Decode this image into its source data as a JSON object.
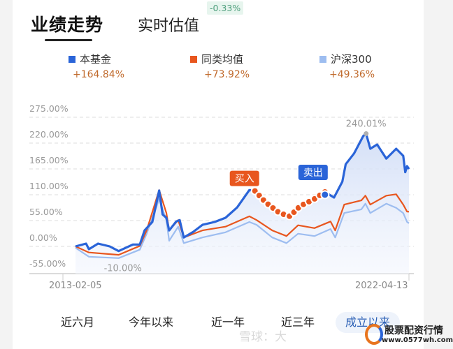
{
  "tabs": {
    "active": "业绩走势",
    "second": "实时估值",
    "estimate_badge": "-0.33%"
  },
  "legend": [
    {
      "name": "本基金",
      "value": "+164.84%",
      "color": "#2a64d8"
    },
    {
      "name": "同类均值",
      "value": "+73.92%",
      "color": "#e8561e"
    },
    {
      "name": "沪深300",
      "value": "+49.36%",
      "color": "#9dbdf0"
    }
  ],
  "chart_data": {
    "type": "line",
    "y_ticks": [
      "275.00%",
      "220.00%",
      "165.00%",
      "110.00%",
      "55.00%",
      "0.00%",
      "-55.00%"
    ],
    "ylim": [
      -55,
      275
    ],
    "x_range": [
      "2013-02-05",
      "2022-04-13"
    ],
    "grid": true,
    "max_label": "240.01%",
    "min_label": "-10.00%",
    "buy_label": "买入",
    "sell_label": "卖出",
    "buy_date": "2018-01-15",
    "sell_date": "2019-12-20",
    "series": [
      {
        "name": "本基金",
        "color": "#2a64d8",
        "points": [
          [
            "2013-02-05",
            0
          ],
          [
            "2013-05-22",
            6
          ],
          [
            "2013-06-20",
            -6
          ],
          [
            "2013-09-20",
            6
          ],
          [
            "2014-01-15",
            0
          ],
          [
            "2014-04-15",
            -10
          ],
          [
            "2014-09-05",
            4
          ],
          [
            "2014-11-14",
            4
          ],
          [
            "2015-01-01",
            34
          ],
          [
            "2015-03-20",
            52
          ],
          [
            "2015-05-28",
            119
          ],
          [
            "2015-07-01",
            68
          ],
          [
            "2015-08-08",
            61
          ],
          [
            "2015-09-05",
            34
          ],
          [
            "2015-11-15",
            53
          ],
          [
            "2015-12-20",
            56
          ],
          [
            "2016-01-30",
            19
          ],
          [
            "2016-05-05",
            31
          ],
          [
            "2016-08-05",
            46
          ],
          [
            "2016-12-05",
            52
          ],
          [
            "2017-03-25",
            61
          ],
          [
            "2017-07-20",
            83
          ],
          [
            "2017-11-20",
            120
          ],
          [
            "2018-01-15",
            118
          ],
          [
            "2018-05-01",
            94
          ],
          [
            "2018-09-20",
            71
          ],
          [
            "2019-01-01",
            64
          ],
          [
            "2019-04-15",
            86
          ],
          [
            "2019-09-05",
            101
          ],
          [
            "2019-12-20",
            116
          ],
          [
            "2020-03-20",
            104
          ],
          [
            "2020-06-12",
            138
          ],
          [
            "2020-07-16",
            175
          ],
          [
            "2020-10-08",
            198
          ],
          [
            "2021-01-08",
            235
          ],
          [
            "2021-02-06",
            240.01
          ],
          [
            "2021-03-20",
            208
          ],
          [
            "2021-05-28",
            217
          ],
          [
            "2021-08-28",
            187
          ],
          [
            "2021-12-05",
            208
          ],
          [
            "2022-02-14",
            193
          ],
          [
            "2022-03-07",
            158
          ],
          [
            "2022-03-25",
            171
          ],
          [
            "2022-04-13",
            164.84
          ]
        ]
      },
      {
        "name": "同类均值",
        "color": "#e8561e",
        "points": [
          [
            "2013-02-05",
            0
          ],
          [
            "2013-06-20",
            -13
          ],
          [
            "2014-04-15",
            -18
          ],
          [
            "2014-11-14",
            1
          ],
          [
            "2015-01-22",
            34
          ],
          [
            "2015-05-28",
            120
          ],
          [
            "2015-08-08",
            71
          ],
          [
            "2015-09-05",
            34
          ],
          [
            "2015-12-05",
            56
          ],
          [
            "2016-01-30",
            19
          ],
          [
            "2016-08-05",
            34
          ],
          [
            "2017-03-25",
            42
          ],
          [
            "2017-11-20",
            64
          ],
          [
            "2018-02-01",
            56
          ],
          [
            "2018-07-08",
            34
          ],
          [
            "2018-11-28",
            22
          ],
          [
            "2019-03-25",
            45
          ],
          [
            "2019-09-05",
            39
          ],
          [
            "2020-02-14",
            53
          ],
          [
            "2020-04-01",
            34
          ],
          [
            "2020-07-01",
            89
          ],
          [
            "2020-12-20",
            98
          ],
          [
            "2021-01-30",
            108
          ],
          [
            "2021-03-20",
            89
          ],
          [
            "2021-08-28",
            108
          ],
          [
            "2021-12-05",
            111
          ],
          [
            "2022-02-14",
            89
          ],
          [
            "2022-03-25",
            74
          ],
          [
            "2022-04-13",
            73.92
          ]
        ]
      },
      {
        "name": "沪深300",
        "color": "#9dbdf0",
        "points": [
          [
            "2013-02-05",
            -3
          ],
          [
            "2013-06-20",
            -22
          ],
          [
            "2014-04-15",
            -25
          ],
          [
            "2014-11-14",
            -7
          ],
          [
            "2015-01-22",
            27
          ],
          [
            "2015-05-28",
            101
          ],
          [
            "2015-08-08",
            56
          ],
          [
            "2015-09-05",
            12
          ],
          [
            "2015-12-05",
            42
          ],
          [
            "2016-01-30",
            7
          ],
          [
            "2016-08-05",
            19
          ],
          [
            "2017-03-25",
            30
          ],
          [
            "2017-11-20",
            52
          ],
          [
            "2018-02-01",
            46
          ],
          [
            "2018-07-08",
            19
          ],
          [
            "2018-11-28",
            7
          ],
          [
            "2019-03-25",
            27
          ],
          [
            "2019-09-05",
            22
          ],
          [
            "2020-02-14",
            37
          ],
          [
            "2020-04-01",
            19
          ],
          [
            "2020-07-01",
            71
          ],
          [
            "2020-12-20",
            79
          ],
          [
            "2021-01-30",
            91
          ],
          [
            "2021-03-20",
            71
          ],
          [
            "2021-08-28",
            91
          ],
          [
            "2021-12-05",
            82
          ],
          [
            "2022-02-14",
            71
          ],
          [
            "2022-03-25",
            52
          ],
          [
            "2022-04-13",
            49.36
          ]
        ]
      }
    ]
  },
  "dates": {
    "start": "2013-02-05",
    "end": "2022-04-13"
  },
  "ranges": [
    {
      "label": "近六月",
      "active": false
    },
    {
      "label": "今年以来",
      "active": false
    },
    {
      "label": "近一年",
      "active": false
    },
    {
      "label": "近三年",
      "active": false
    },
    {
      "label": "成立以来",
      "active": true
    }
  ],
  "watermark": {
    "text": "雪球：大",
    "logo_title": "股票配资行情",
    "logo_url": "www.0577wh.com"
  }
}
